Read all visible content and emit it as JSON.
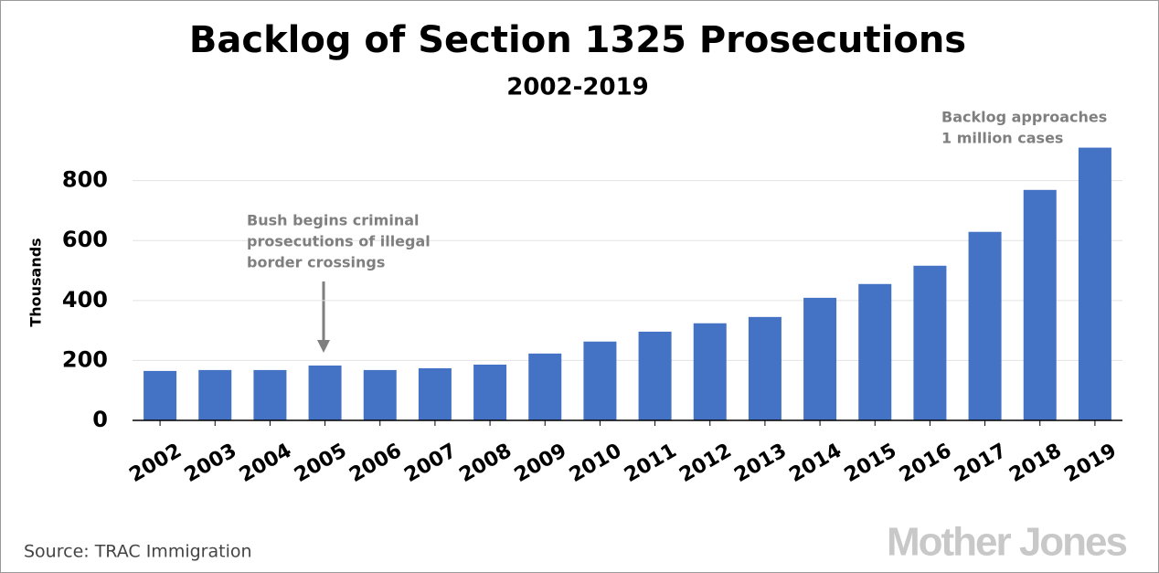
{
  "chart_data": {
    "type": "bar",
    "title": "Backlog of Section 1325 Prosecutions",
    "subtitle": "2002-2019",
    "y_label": "Thousands",
    "categories": [
      "2002",
      "2003",
      "2004",
      "2005",
      "2006",
      "2007",
      "2008",
      "2009",
      "2010",
      "2011",
      "2012",
      "2013",
      "2014",
      "2015",
      "2016",
      "2017",
      "2018",
      "2019"
    ],
    "values": [
      165,
      168,
      168,
      183,
      168,
      174,
      186,
      223,
      263,
      296,
      324,
      345,
      409,
      455,
      516,
      629,
      769,
      910
    ],
    "color": "#4472c4",
    "ylim": [
      0,
      930
    ],
    "yticks": [
      0,
      200,
      400,
      600,
      800
    ],
    "grid": true,
    "annotations": [
      {
        "lines": [
          "Bush begins criminal",
          "prosecutions of illegal",
          "border crossings"
        ]
      },
      {
        "lines": [
          "Backlog approaches",
          "1 million cases"
        ]
      }
    ],
    "source": "Source: TRAC Immigration",
    "logo": "Mother Jones"
  }
}
